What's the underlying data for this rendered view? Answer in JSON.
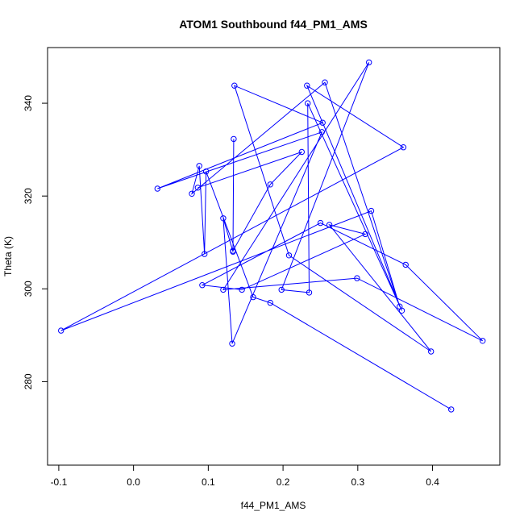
{
  "chart_data": {
    "type": "scatter",
    "title": "ATOM1 Southbound f44_PM1_AMS",
    "xlabel": "f44_PM1_AMS",
    "ylabel": "Theta (K)",
    "xlim": [
      -0.115,
      0.49
    ],
    "ylim": [
      262,
      352
    ],
    "xticks": [
      -0.1,
      0.0,
      0.1,
      0.2,
      0.3,
      0.4
    ],
    "xtick_labels": [
      "-0.1",
      "0.0",
      "0.1",
      "0.2",
      "0.3",
      "0.4"
    ],
    "yticks": [
      280,
      300,
      320,
      340
    ],
    "ytick_labels": [
      "280",
      "300",
      "320",
      "340"
    ],
    "grid": false,
    "color": "#0000ff",
    "series": [
      {
        "mode": "lines+markers",
        "points": [
          {
            "x": 0.425,
            "y": 274.0
          },
          {
            "x": 0.183,
            "y": 297.0
          },
          {
            "x": 0.16,
            "y": 298.2
          },
          {
            "x": 0.097,
            "y": 325.3
          },
          {
            "x": 0.095,
            "y": 307.5
          },
          {
            "x": 0.088,
            "y": 326.5
          },
          {
            "x": 0.078,
            "y": 320.5
          },
          {
            "x": 0.256,
            "y": 344.5
          },
          {
            "x": 0.356,
            "y": 296.2
          },
          {
            "x": 0.318,
            "y": 316.8
          },
          {
            "x": -0.097,
            "y": 291.0
          },
          {
            "x": 0.361,
            "y": 330.5
          },
          {
            "x": 0.232,
            "y": 343.8
          },
          {
            "x": 0.359,
            "y": 295.3
          },
          {
            "x": 0.233,
            "y": 340.0
          },
          {
            "x": 0.235,
            "y": 299.2
          },
          {
            "x": 0.198,
            "y": 299.8
          },
          {
            "x": 0.315,
            "y": 348.8
          },
          {
            "x": 0.12,
            "y": 299.8
          },
          {
            "x": 0.299,
            "y": 302.3
          },
          {
            "x": 0.467,
            "y": 288.8
          },
          {
            "x": 0.364,
            "y": 305.2
          },
          {
            "x": 0.25,
            "y": 314.2
          },
          {
            "x": 0.092,
            "y": 300.8
          },
          {
            "x": 0.145,
            "y": 299.8
          },
          {
            "x": 0.31,
            "y": 311.8
          },
          {
            "x": 0.262,
            "y": 313.8
          },
          {
            "x": 0.398,
            "y": 286.5
          },
          {
            "x": 0.208,
            "y": 307.2
          },
          {
            "x": 0.135,
            "y": 343.8
          },
          {
            "x": 0.253,
            "y": 335.8
          },
          {
            "x": 0.032,
            "y": 321.6
          },
          {
            "x": 0.252,
            "y": 333.8
          },
          {
            "x": 0.132,
            "y": 288.2
          },
          {
            "x": 0.12,
            "y": 315.2
          },
          {
            "x": 0.133,
            "y": 308.0
          },
          {
            "x": 0.134,
            "y": 332.3
          },
          {
            "x": 0.133,
            "y": 308.2
          },
          {
            "x": 0.183,
            "y": 322.5
          },
          {
            "x": 0.225,
            "y": 329.5
          },
          {
            "x": 0.086,
            "y": 321.8
          }
        ]
      }
    ]
  }
}
